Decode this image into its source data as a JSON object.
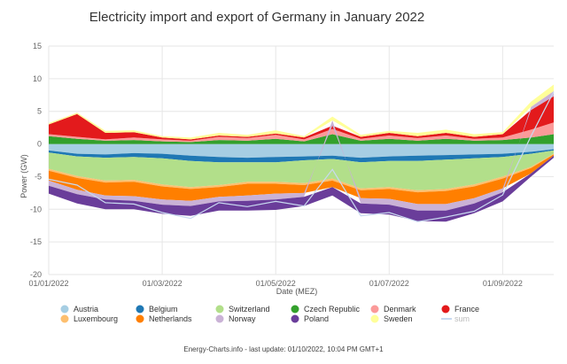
{
  "chart_data": {
    "type": "area",
    "title": "Electricity import and export of Germany in January 2022",
    "xlabel": "Date (MEZ)",
    "ylabel": "Power (GW)",
    "ylim": [
      -20,
      15
    ],
    "yticks": [
      "15",
      "10",
      "5",
      "0",
      "-5",
      "-10",
      "-15",
      "-20"
    ],
    "yticks_values": [
      15,
      10,
      5,
      0,
      -5,
      -10,
      -15,
      -20
    ],
    "xlim": [
      0,
      8.9
    ],
    "xticks": [
      "01/01/2022",
      "01/03/2022",
      "01/05/2022",
      "01/07/2022",
      "01/09/2022"
    ],
    "xticks_values": [
      0,
      2,
      4,
      6,
      8
    ],
    "grid": true,
    "legend_position": "bottom",
    "x": [
      0,
      0.5,
      1,
      1.5,
      2,
      2.5,
      3,
      3.5,
      4,
      4.5,
      5,
      5.5,
      6,
      6.5,
      7,
      7.5,
      8,
      8.5,
      8.9
    ],
    "series": [
      {
        "name": "Austria",
        "color": "#a6cee3",
        "values": [
          -1.0,
          -1.5,
          -1.6,
          -1.4,
          -1.5,
          -1.8,
          -2.0,
          -2.1,
          -2.0,
          -1.9,
          -1.8,
          -2.1,
          -1.9,
          -1.8,
          -1.7,
          -1.6,
          -1.5,
          -1.2,
          -0.8
        ]
      },
      {
        "name": "Belgium",
        "color": "#1f78b4",
        "values": [
          -0.3,
          -0.4,
          -0.5,
          -0.6,
          -0.7,
          -0.8,
          -0.8,
          -0.7,
          -0.8,
          -0.6,
          -0.5,
          -0.7,
          -0.7,
          -0.8,
          -0.7,
          -0.6,
          -0.5,
          -0.3,
          -0.2
        ]
      },
      {
        "name": "Switzerland",
        "color": "#b2df8a",
        "values": [
          -2.5,
          -3.0,
          -3.5,
          -3.5,
          -4.0,
          -4.0,
          -3.5,
          -3.0,
          -3.0,
          -3.5,
          -3.0,
          -4.0,
          -4.0,
          -4.5,
          -4.5,
          -4.0,
          -3.0,
          -2.0,
          -0.5
        ]
      },
      {
        "name": "Czech Republic",
        "color": "#33a02c",
        "values": [
          1.2,
          0.8,
          0.5,
          0.6,
          0.4,
          0.3,
          0.6,
          0.5,
          0.8,
          0.4,
          1.5,
          0.5,
          0.8,
          0.5,
          0.8,
          0.5,
          0.6,
          1.0,
          1.5
        ]
      },
      {
        "name": "Denmark",
        "color": "#fb9a99",
        "values": [
          0.3,
          0.3,
          0.2,
          0.4,
          0.3,
          0.2,
          0.5,
          0.4,
          0.6,
          0.3,
          0.8,
          0.3,
          0.5,
          0.4,
          0.5,
          0.3,
          0.4,
          1.2,
          1.8
        ]
      },
      {
        "name": "France",
        "color": "#e31a1c",
        "values": [
          1.5,
          3.5,
          1.0,
          0.8,
          0.3,
          0.2,
          0.2,
          0.2,
          0.2,
          0.3,
          0.5,
          0.3,
          0.4,
          0.3,
          0.4,
          0.3,
          0.5,
          3.0,
          4.0
        ]
      },
      {
        "name": "Luxembourg",
        "color": "#fdbf6f",
        "values": [
          -0.3,
          -0.3,
          -0.3,
          -0.3,
          -0.3,
          -0.3,
          -0.3,
          -0.3,
          -0.3,
          -0.3,
          -0.3,
          -0.3,
          -0.3,
          -0.3,
          -0.3,
          -0.3,
          -0.3,
          -0.2,
          -0.1
        ]
      },
      {
        "name": "Netherlands",
        "color": "#ff7f00",
        "values": [
          -1.5,
          -1.8,
          -2.0,
          -2.2,
          -2.0,
          -1.8,
          -1.5,
          -1.8,
          -1.5,
          -1.2,
          -1.0,
          -1.2,
          -1.5,
          -1.8,
          -2.0,
          -1.8,
          -1.5,
          -0.8,
          -0.2
        ]
      },
      {
        "name": "Norway",
        "color": "#cab2d6",
        "values": [
          -0.8,
          -0.7,
          -0.6,
          -0.7,
          -0.8,
          -0.8,
          -0.7,
          -0.8,
          -0.9,
          -0.6,
          0.8,
          -0.8,
          -0.9,
          -1.0,
          -1.0,
          -0.8,
          -0.6,
          0.5,
          0.8
        ]
      },
      {
        "name": "Poland",
        "color": "#6a3d9a",
        "values": [
          -1.2,
          -1.4,
          -1.5,
          -1.3,
          -1.4,
          -1.5,
          -1.4,
          -1.5,
          -1.6,
          -1.4,
          -1.3,
          -1.5,
          -1.5,
          -1.6,
          -1.7,
          -1.5,
          -1.4,
          -0.5,
          -0.3
        ]
      },
      {
        "name": "Sweden",
        "color": "#ffff99",
        "values": [
          0.2,
          0.2,
          0.3,
          0.3,
          0.2,
          0.3,
          0.4,
          0.3,
          0.5,
          0.2,
          0.6,
          0.3,
          0.3,
          0.5,
          0.5,
          0.4,
          0.3,
          0.8,
          1.0
        ]
      },
      {
        "name": "sum",
        "color": "#c8d9f0",
        "values": [
          -5.4,
          -6.3,
          -9.0,
          -9.2,
          -10.5,
          -11.4,
          -9.0,
          -9.6,
          -8.8,
          -9.5,
          -3.9,
          -11.0,
          -10.5,
          -11.9,
          -11.2,
          -10.3,
          -7.8,
          1.2,
          8.0
        ]
      }
    ],
    "line_series": [
      "sum"
    ],
    "legend": [
      [
        "Austria",
        "Belgium",
        "Switzerland",
        "Czech Republic",
        "Denmark",
        "France"
      ],
      [
        "Luxembourg",
        "Netherlands",
        "Norway",
        "Poland",
        "Sweden",
        "sum"
      ]
    ]
  },
  "credit": "Energy-Charts.info - last update: 01/10/2022, 10:04 PM GMT+1"
}
